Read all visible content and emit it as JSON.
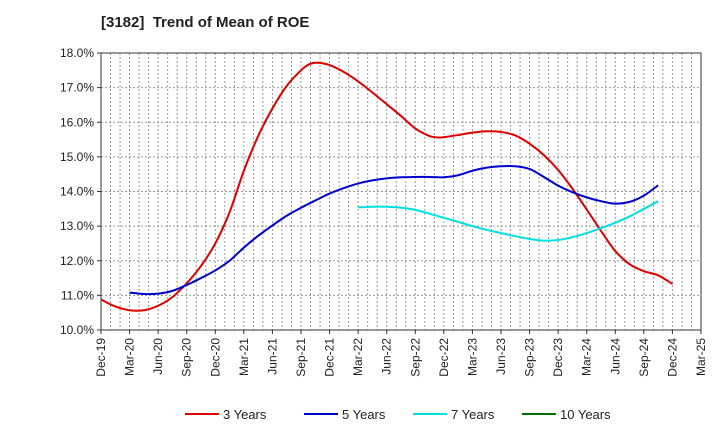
{
  "chart_data": {
    "type": "line",
    "title": "[3182]  Trend of Mean of ROE",
    "ylim": [
      10.0,
      18.0
    ],
    "y_ticks": [
      "10.0%",
      "11.0%",
      "12.0%",
      "13.0%",
      "14.0%",
      "15.0%",
      "16.0%",
      "17.0%",
      "18.0%"
    ],
    "x_ticks": [
      "Dec-19",
      "Mar-20",
      "Jun-20",
      "Sep-20",
      "Dec-20",
      "Mar-21",
      "Jun-21",
      "Sep-21",
      "Dec-21",
      "Mar-22",
      "Jun-22",
      "Sep-22",
      "Dec-22",
      "Mar-23",
      "Jun-23",
      "Sep-23",
      "Dec-23",
      "Mar-24",
      "Jun-24",
      "Sep-24",
      "Dec-24",
      "Mar-25"
    ],
    "grid": true,
    "legend_position": "bottom",
    "series": [
      {
        "name": "3 Years",
        "color": "#e00000",
        "points": [
          [
            0,
            10.88
          ],
          [
            0.5,
            10.68
          ],
          [
            1,
            10.57
          ],
          [
            1.5,
            10.57
          ],
          [
            2,
            10.7
          ],
          [
            2.5,
            10.95
          ],
          [
            3,
            11.35
          ],
          [
            3.5,
            11.85
          ],
          [
            4,
            12.5
          ],
          [
            4.5,
            13.4
          ],
          [
            5,
            14.6
          ],
          [
            5.5,
            15.6
          ],
          [
            6,
            16.4
          ],
          [
            6.5,
            17.05
          ],
          [
            7,
            17.5
          ],
          [
            7.3,
            17.68
          ],
          [
            7.6,
            17.72
          ],
          [
            8,
            17.65
          ],
          [
            8.5,
            17.45
          ],
          [
            9,
            17.18
          ],
          [
            9.5,
            16.86
          ],
          [
            10,
            16.52
          ],
          [
            10.5,
            16.18
          ],
          [
            11,
            15.82
          ],
          [
            11.5,
            15.6
          ],
          [
            11.8,
            15.56
          ],
          [
            12,
            15.57
          ],
          [
            12.5,
            15.63
          ],
          [
            13,
            15.7
          ],
          [
            13.5,
            15.74
          ],
          [
            14,
            15.72
          ],
          [
            14.5,
            15.62
          ],
          [
            15,
            15.38
          ],
          [
            15.5,
            15.05
          ],
          [
            16,
            14.62
          ],
          [
            16.5,
            14.08
          ],
          [
            17,
            13.48
          ],
          [
            17.5,
            12.86
          ],
          [
            18,
            12.28
          ],
          [
            18.5,
            11.9
          ],
          [
            19,
            11.7
          ],
          [
            19.5,
            11.58
          ],
          [
            20,
            11.33
          ]
        ]
      },
      {
        "name": "5 Years",
        "color": "#0000cc",
        "points": [
          [
            1,
            11.08
          ],
          [
            1.5,
            11.04
          ],
          [
            2,
            11.05
          ],
          [
            2.5,
            11.13
          ],
          [
            3,
            11.3
          ],
          [
            3.5,
            11.5
          ],
          [
            4,
            11.72
          ],
          [
            4.5,
            12.0
          ],
          [
            5,
            12.38
          ],
          [
            5.5,
            12.72
          ],
          [
            6,
            13.02
          ],
          [
            6.5,
            13.3
          ],
          [
            7,
            13.53
          ],
          [
            7.5,
            13.74
          ],
          [
            8,
            13.94
          ],
          [
            8.5,
            14.1
          ],
          [
            9,
            14.23
          ],
          [
            9.5,
            14.32
          ],
          [
            10,
            14.38
          ],
          [
            10.5,
            14.41
          ],
          [
            11,
            14.42
          ],
          [
            11.5,
            14.42
          ],
          [
            12,
            14.41
          ],
          [
            12.5,
            14.47
          ],
          [
            13,
            14.6
          ],
          [
            13.5,
            14.69
          ],
          [
            14,
            14.73
          ],
          [
            14.5,
            14.73
          ],
          [
            15,
            14.65
          ],
          [
            15.5,
            14.42
          ],
          [
            16,
            14.17
          ],
          [
            16.5,
            13.98
          ],
          [
            17,
            13.83
          ],
          [
            17.5,
            13.72
          ],
          [
            18,
            13.65
          ],
          [
            18.5,
            13.7
          ],
          [
            19,
            13.88
          ],
          [
            19.5,
            14.18
          ]
        ]
      },
      {
        "name": "7 Years",
        "color": "#00e0e0",
        "points": [
          [
            9,
            13.54
          ],
          [
            9.5,
            13.56
          ],
          [
            10,
            13.56
          ],
          [
            10.5,
            13.53
          ],
          [
            11,
            13.47
          ],
          [
            11.5,
            13.36
          ],
          [
            12,
            13.24
          ],
          [
            12.5,
            13.12
          ],
          [
            13,
            13.0
          ],
          [
            13.5,
            12.89
          ],
          [
            14,
            12.8
          ],
          [
            14.5,
            12.71
          ],
          [
            15,
            12.63
          ],
          [
            15.5,
            12.58
          ],
          [
            16,
            12.6
          ],
          [
            16.5,
            12.68
          ],
          [
            17,
            12.8
          ],
          [
            17.5,
            12.94
          ],
          [
            18,
            13.1
          ],
          [
            18.5,
            13.28
          ],
          [
            19,
            13.5
          ],
          [
            19.5,
            13.72
          ]
        ]
      },
      {
        "name": "10 Years",
        "color": "#007000",
        "points": []
      }
    ]
  }
}
